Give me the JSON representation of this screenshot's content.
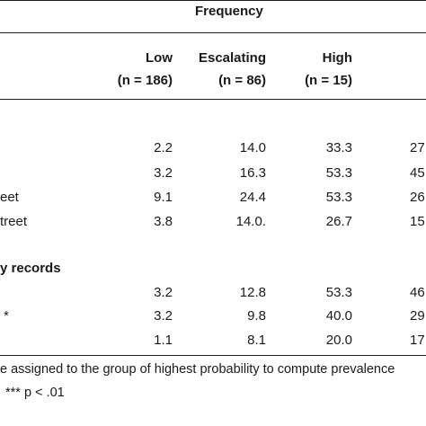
{
  "header": {
    "group_title": "Frequency",
    "columns": [
      {
        "label": "Low",
        "n": "(n = 186)"
      },
      {
        "label": "Escalating",
        "n": "(n = 86)"
      },
      {
        "label": "High",
        "n": "(n = 15)"
      }
    ]
  },
  "section1": {
    "rows": [
      {
        "label": "",
        "values": [
          "2.2",
          "14.0",
          "33.3",
          "27"
        ]
      },
      {
        "label": "",
        "values": [
          "3.2",
          "16.3",
          "53.3",
          "45"
        ]
      },
      {
        "label": "eet",
        "values": [
          "9.1",
          "24.4",
          "53.3",
          "26"
        ]
      },
      {
        "label": "treet",
        "values": [
          "3.8",
          "14.0.",
          "26.7",
          "15"
        ]
      }
    ]
  },
  "section2": {
    "title": "y records",
    "rows": [
      {
        "label": "",
        "values": [
          "3.2",
          "12.8",
          "53.3",
          "46"
        ]
      },
      {
        "label": "*",
        "values": [
          "3.2",
          "9.8",
          "40.0",
          "29"
        ]
      },
      {
        "label": "",
        "values": [
          "1.1",
          "8.1",
          "20.0",
          "17"
        ]
      }
    ]
  },
  "footnotes": {
    "line1": "e assigned to the group of highest probability to compute prevalence",
    "line2": "*** p < .01"
  }
}
